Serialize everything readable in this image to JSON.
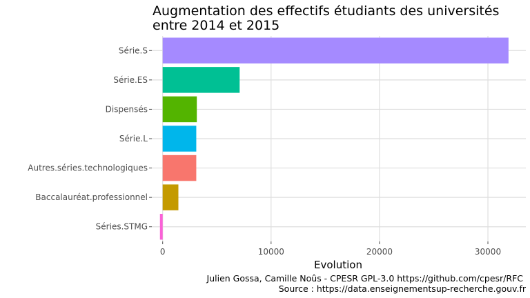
{
  "chart_data": {
    "type": "bar",
    "orientation": "horizontal",
    "title": [
      "Augmentation des effectifs étudiants des universités",
      "entre 2014 et 2015"
    ],
    "xlabel": "Evolution",
    "ylabel": "",
    "categories": [
      "Série.S",
      "Série.ES",
      "Dispensés",
      "Série.L",
      "Autres.séries.technologiques",
      "Baccalauréat.professionnel",
      "Séries.STMG"
    ],
    "values": [
      31900,
      7100,
      3150,
      3100,
      3100,
      1450,
      -250
    ],
    "colors": [
      "#a58aff",
      "#00c094",
      "#53b400",
      "#00b6eb",
      "#f8766d",
      "#c49a00",
      "#fb61d7"
    ],
    "xlim": [
      -1000,
      33500
    ],
    "x_ticks": [
      0,
      10000,
      20000,
      30000
    ],
    "x_tick_labels": [
      "0",
      "10000",
      "20000",
      "30000"
    ],
    "grid": true,
    "legend": "none"
  },
  "caption": {
    "line1": "Julien Gossa, Camille Noûs - CPESR GPL-3.0 https://github.com/cpesr/RFC",
    "line2": "Source : https://data.enseignementsup-recherche.gouv.fr"
  }
}
